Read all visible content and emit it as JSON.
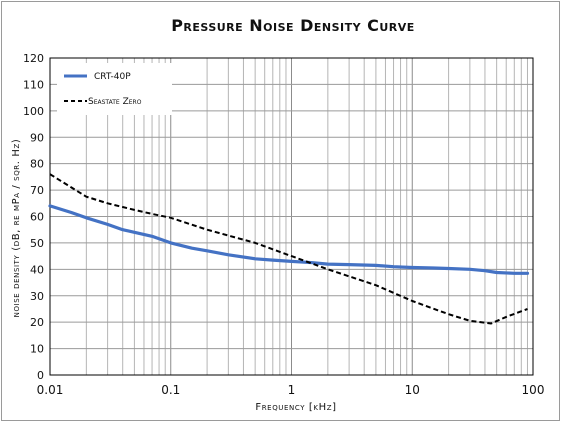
{
  "chart_data": {
    "type": "line",
    "title": "Pressure Noise Density Curve",
    "xlabel": "Frequency [kHz]",
    "ylabel": "noise density (dB, re μPa / sqr. Hz)",
    "x_scale": "log",
    "xlim": [
      0.01,
      100
    ],
    "ylim": [
      0,
      120
    ],
    "x_ticks": [
      "0.01",
      "0.1",
      "1",
      "10",
      "100"
    ],
    "y_ticks": [
      0,
      10,
      20,
      30,
      40,
      50,
      60,
      70,
      80,
      90,
      100,
      110,
      120
    ],
    "grid": true,
    "legend_position": "top-left",
    "series": [
      {
        "name": "CRT-40P",
        "style": "solid",
        "color": "#4472c4",
        "points": [
          [
            0.01,
            64
          ],
          [
            0.015,
            61.5
          ],
          [
            0.02,
            59.5
          ],
          [
            0.03,
            57
          ],
          [
            0.04,
            55
          ],
          [
            0.05,
            54
          ],
          [
            0.07,
            52.5
          ],
          [
            0.1,
            50
          ],
          [
            0.15,
            48
          ],
          [
            0.2,
            47
          ],
          [
            0.3,
            45.5
          ],
          [
            0.5,
            44
          ],
          [
            0.7,
            43.5
          ],
          [
            1,
            43
          ],
          [
            1.5,
            42.5
          ],
          [
            2,
            42
          ],
          [
            3,
            41.8
          ],
          [
            5,
            41.5
          ],
          [
            7,
            41
          ],
          [
            10,
            40.7
          ],
          [
            15,
            40.5
          ],
          [
            20,
            40.3
          ],
          [
            30,
            40
          ],
          [
            40,
            39.5
          ],
          [
            50,
            38.8
          ],
          [
            70,
            38.5
          ],
          [
            90,
            38.5
          ]
        ]
      },
      {
        "name": "Seastate Zero",
        "style": "dashed",
        "color": "#000000",
        "points": [
          [
            0.01,
            76
          ],
          [
            0.015,
            71
          ],
          [
            0.02,
            67.5
          ],
          [
            0.03,
            65
          ],
          [
            0.05,
            62.5
          ],
          [
            0.07,
            61
          ],
          [
            0.1,
            59.5
          ],
          [
            0.2,
            55
          ],
          [
            0.5,
            50
          ],
          [
            1,
            45
          ],
          [
            2,
            40
          ],
          [
            5,
            34
          ],
          [
            10,
            28
          ],
          [
            20,
            23
          ],
          [
            30,
            20.5
          ],
          [
            45,
            19.5
          ],
          [
            60,
            22
          ],
          [
            90,
            25
          ]
        ]
      }
    ]
  }
}
